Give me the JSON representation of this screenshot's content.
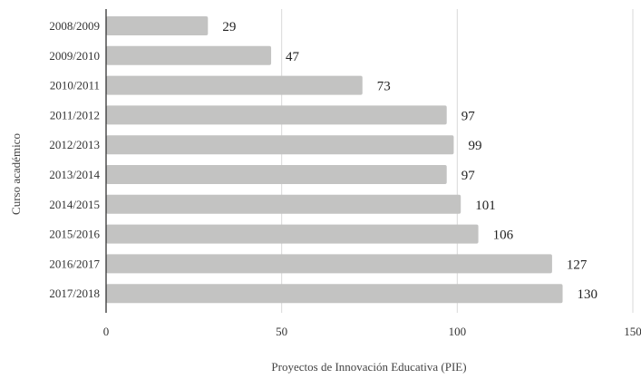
{
  "chart_data": {
    "type": "bar",
    "orientation": "horizontal",
    "title": "",
    "xlabel": "Proyectos de Innovación Educativa (PIE)",
    "ylabel": "Curso académico",
    "categories": [
      "2008/2009",
      "2009/2010",
      "2010/2011",
      "2011/2012",
      "2012/2013",
      "2013/2014",
      "2014/2015",
      "2015/2016",
      "2016/2017",
      "2017/2018"
    ],
    "values": [
      29,
      47,
      73,
      97,
      99,
      97,
      101,
      106,
      127,
      130
    ],
    "xlim": [
      0,
      150
    ],
    "xticks": [
      0,
      50,
      100,
      150
    ],
    "grid": "vertical",
    "legend": "none",
    "bar_color": "#c3c3c2",
    "grid_color": "#d9d9d9",
    "axis_color": "#333333"
  }
}
